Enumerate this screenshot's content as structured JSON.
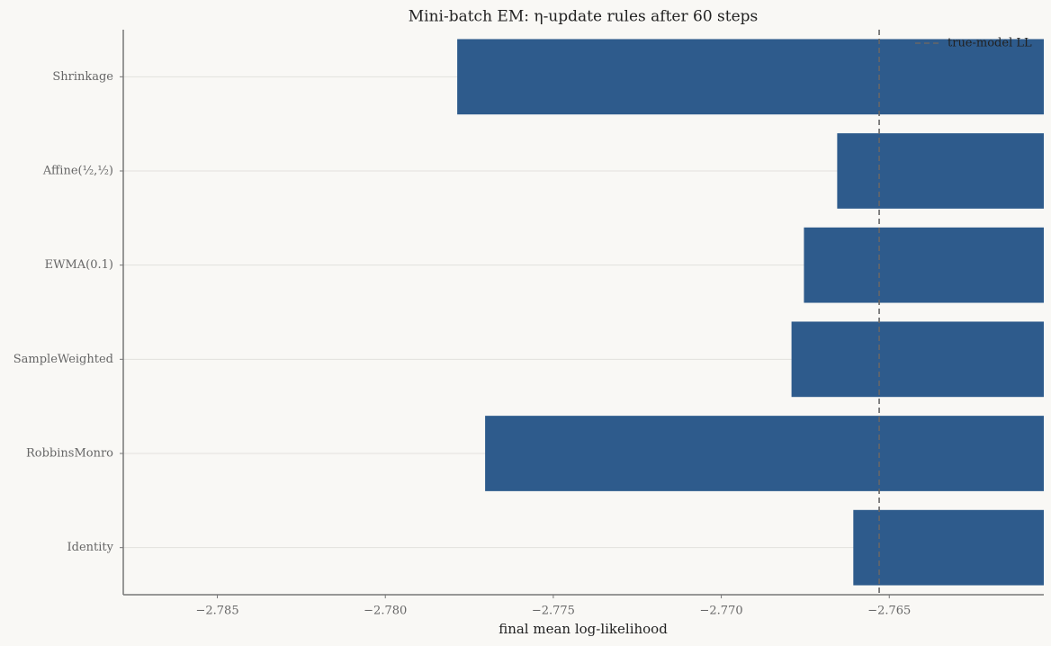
{
  "chart_data": {
    "type": "barh",
    "title": "Mini-batch EM: η-update rules after 60 steps",
    "xlabel": "final mean log-likelihood",
    "categories": [
      "Shrinkage",
      "Affine(½,½)",
      "EWMA(0.1)",
      "SampleWeighted",
      "RobbinsMonro",
      "Identity"
    ],
    "values": [
      -2.77786,
      -2.76655,
      -2.76754,
      -2.76791,
      -2.77703,
      -2.76607
    ],
    "color": "#2e5b8c",
    "xlim": [
      -2.7878,
      -2.7604
    ],
    "xticks": [
      {
        "value": -2.785,
        "label": "−2.785"
      },
      {
        "value": -2.78,
        "label": "−2.780"
      },
      {
        "value": -2.775,
        "label": "−2.775"
      },
      {
        "value": -2.77,
        "label": "−2.770"
      },
      {
        "value": -2.765,
        "label": "−2.765"
      }
    ],
    "grid": true,
    "reference_line": {
      "name": "true-model LL",
      "value": -2.7653,
      "color": "#666666"
    },
    "legend_position": "upper right"
  }
}
